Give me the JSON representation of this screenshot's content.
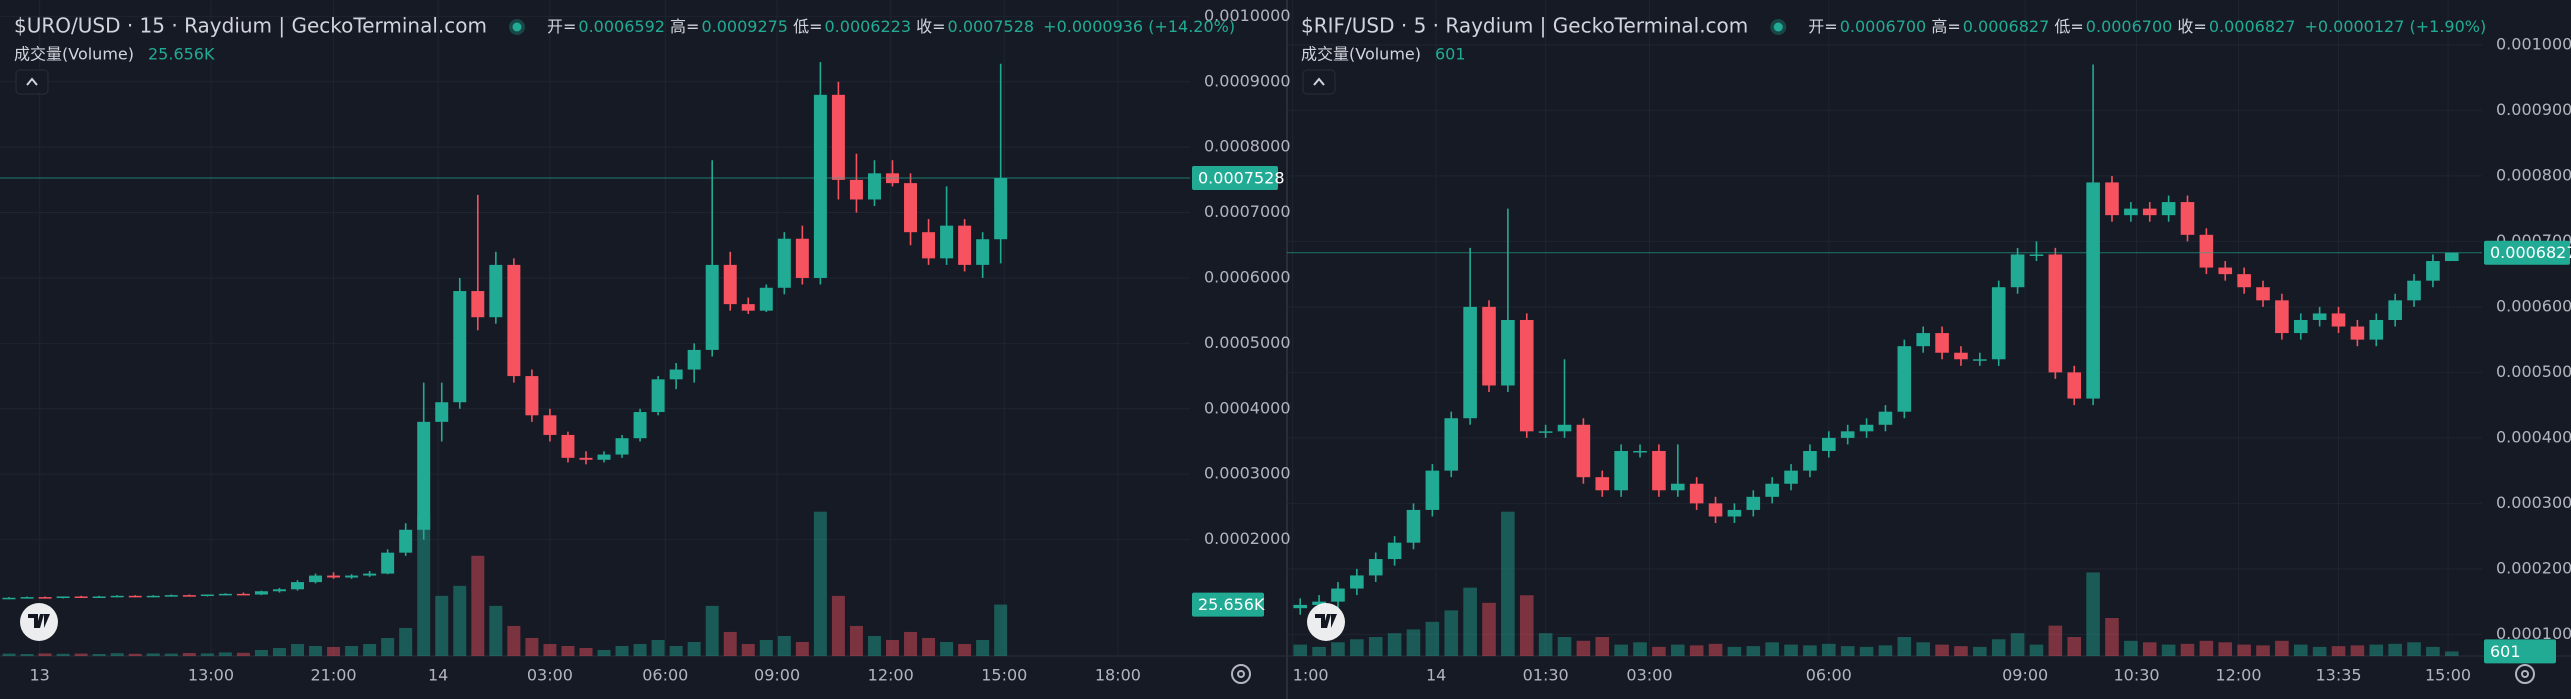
{
  "chart_data": [
    {
      "type": "candlestick",
      "title": "$URO/USD · 15 · Raydium | GeckoTerminal.com",
      "legend": {
        "open_label": "开=",
        "open": "0.0006592",
        "high_label": "高=",
        "high": "0.0009275",
        "low_label": "低=",
        "low": "0.0006223",
        "close_label": "收=",
        "close": "0.0007528",
        "change": "+0.0000936 (+14.20%)"
      },
      "volume_title": "成交量(Volume)",
      "volume_label": "25.656K",
      "up_color": "#22ab94",
      "down_color": "#f7525f",
      "grid": true,
      "open": [
        0.00011,
        0.000111,
        0.000112,
        0.000111,
        0.000113,
        0.000112,
        0.000113,
        0.000114,
        0.000113,
        0.000114,
        0.000115,
        0.000114,
        0.000116,
        0.000117,
        0.000116,
        0.000121,
        0.000124,
        0.000135,
        0.000145,
        0.000142,
        0.000145,
        0.000148,
        0.00018,
        0.000215,
        0.00038,
        0.00041,
        0.00058,
        0.00054,
        0.00062,
        0.00045,
        0.00039,
        0.00036,
        0.000325,
        0.000322,
        0.00033,
        0.000355,
        0.000395,
        0.000445,
        0.00046,
        0.00049,
        0.00062,
        0.00056,
        0.00055,
        0.000585,
        0.00066,
        0.0006,
        0.00088,
        0.00075,
        0.00072,
        0.00076,
        0.000745,
        0.00067,
        0.00063,
        0.00068,
        0.00062,
        0.0006592
      ],
      "high": [
        0.000112,
        0.000113,
        0.000113,
        0.000113,
        0.000114,
        0.000114,
        0.000115,
        0.000115,
        0.000115,
        0.000116,
        0.000116,
        0.000116,
        0.000118,
        0.000119,
        0.000122,
        0.000126,
        0.000138,
        0.000148,
        0.00015,
        0.000147,
        0.000152,
        0.000185,
        0.000225,
        0.00044,
        0.00044,
        0.0006,
        0.000727,
        0.00064,
        0.00063,
        0.00046,
        0.0004,
        0.000365,
        0.000335,
        0.000335,
        0.00036,
        0.0004,
        0.00045,
        0.00047,
        0.0005,
        0.00078,
        0.00064,
        0.00057,
        0.00059,
        0.00067,
        0.00068,
        0.00093,
        0.0009,
        0.00079,
        0.00078,
        0.00078,
        0.00076,
        0.00069,
        0.00074,
        0.00069,
        0.00067,
        0.0009275
      ],
      "low": [
        0.000109,
        0.00011,
        0.000111,
        0.00011,
        0.000112,
        0.000111,
        0.000112,
        0.000112,
        0.000112,
        0.000113,
        0.000113,
        0.000113,
        0.000115,
        0.000115,
        0.000115,
        0.000119,
        0.000122,
        0.000133,
        0.00014,
        0.00014,
        0.000143,
        0.000147,
        0.000175,
        0.0002,
        0.00035,
        0.0004,
        0.00052,
        0.00053,
        0.00044,
        0.00038,
        0.00035,
        0.000318,
        0.000315,
        0.000318,
        0.000325,
        0.00035,
        0.00039,
        0.00043,
        0.00044,
        0.00048,
        0.00055,
        0.000545,
        0.000548,
        0.000575,
        0.00059,
        0.00059,
        0.00072,
        0.0007,
        0.00071,
        0.00074,
        0.00065,
        0.00062,
        0.00062,
        0.00061,
        0.0006,
        0.0006223
      ],
      "close": [
        0.000111,
        0.000112,
        0.000111,
        0.000113,
        0.000112,
        0.000113,
        0.000114,
        0.000113,
        0.000114,
        0.000115,
        0.000114,
        0.000116,
        0.000117,
        0.000116,
        0.000121,
        0.000124,
        0.000135,
        0.000145,
        0.000142,
        0.000145,
        0.000148,
        0.00018,
        0.000215,
        0.00038,
        0.00041,
        0.00058,
        0.00054,
        0.00062,
        0.00045,
        0.00039,
        0.00036,
        0.000325,
        0.000322,
        0.00033,
        0.000355,
        0.000395,
        0.000445,
        0.00046,
        0.00049,
        0.00062,
        0.00056,
        0.00055,
        0.000585,
        0.00066,
        0.0006,
        0.00088,
        0.00075,
        0.00072,
        0.00076,
        0.000745,
        0.00067,
        0.00063,
        0.00068,
        0.00062,
        0.0006592,
        0.0007528
      ],
      "volume": [
        1200,
        1000,
        1300,
        1100,
        1200,
        1000,
        1400,
        1100,
        1300,
        1200,
        1500,
        1300,
        1800,
        1600,
        3000,
        4000,
        6000,
        5000,
        4500,
        5000,
        6000,
        9000,
        14000,
        70000,
        30000,
        35000,
        50000,
        25000,
        15000,
        9000,
        6000,
        5000,
        4000,
        3000,
        5000,
        6000,
        8000,
        5000,
        7000,
        25000,
        12000,
        6000,
        8000,
        10000,
        7000,
        72000,
        30000,
        15000,
        10000,
        8000,
        12000,
        9000,
        7000,
        6000,
        8000,
        25656
      ],
      "xlim": [
        -0.5,
        65.5
      ],
      "xticks": [
        {
          "value": 1.7,
          "label": "13"
        },
        {
          "value": 11.2,
          "label": "13:00"
        },
        {
          "value": 18,
          "label": "21:00"
        },
        {
          "value": 23.8,
          "label": "14"
        },
        {
          "value": 30,
          "label": "03:00"
        },
        {
          "value": 36.4,
          "label": "06:00"
        },
        {
          "value": 42.6,
          "label": "09:00"
        },
        {
          "value": 48.9,
          "label": "12:00"
        },
        {
          "value": 55.2,
          "label": "15:00"
        },
        {
          "value": 61.5,
          "label": "18:00"
        }
      ],
      "ylim": [
        2.2e-05,
        0.001025
      ],
      "yticks": [
        {
          "value": 0.0002,
          "label": "0.0002000"
        },
        {
          "value": 0.0003,
          "label": "0.0003000"
        },
        {
          "value": 0.0004,
          "label": "0.0004000"
        },
        {
          "value": 0.0005,
          "label": "0.0005000"
        },
        {
          "value": 0.0006,
          "label": "0.0006000"
        },
        {
          "value": 0.0007,
          "label": "0.0007000"
        },
        {
          "value": 0.0008,
          "label": "0.0008000"
        },
        {
          "value": 0.0009,
          "label": "0.0009000"
        },
        {
          "value": 0.001,
          "label": "0.0010000"
        }
      ]
    },
    {
      "type": "candlestick",
      "title": "$RIF/USD · 5 · Raydium | GeckoTerminal.com",
      "legend": {
        "open_label": "开=",
        "open": "0.0006700",
        "high_label": "高=",
        "high": "0.0006827",
        "low_label": "低=",
        "low": "0.0006700",
        "close_label": "收=",
        "close": "0.0006827",
        "change": "+0.0000127 (+1.90%)"
      },
      "volume_title": "成交量(Volume)",
      "volume_label": "601",
      "up_color": "#22ab94",
      "down_color": "#f7525f",
      "grid": true,
      "open": [
        0.00014,
        0.000145,
        0.00015,
        0.00017,
        0.00019,
        0.000215,
        0.00024,
        0.00029,
        0.00035,
        0.00043,
        0.0006,
        0.00048,
        0.00058,
        0.00041,
        0.00041,
        0.00042,
        0.00034,
        0.00032,
        0.00038,
        0.00038,
        0.00032,
        0.00033,
        0.0003,
        0.00028,
        0.00029,
        0.00031,
        0.00033,
        0.00035,
        0.00038,
        0.0004,
        0.00041,
        0.00042,
        0.00044,
        0.00054,
        0.00056,
        0.00053,
        0.00052,
        0.00052,
        0.00063,
        0.00068,
        0.00068,
        0.0005,
        0.00046,
        0.00079,
        0.00074,
        0.00075,
        0.00074,
        0.00076,
        0.00071,
        0.00066,
        0.00065,
        0.00063,
        0.00061,
        0.00056,
        0.00058,
        0.00059,
        0.00057,
        0.00055,
        0.00058,
        0.00061,
        0.00064,
        0.00067
      ],
      "high": [
        0.000155,
        0.00016,
        0.00018,
        0.0002,
        0.000225,
        0.00025,
        0.0003,
        0.00036,
        0.00044,
        0.00069,
        0.00061,
        0.00075,
        0.00059,
        0.00042,
        0.00052,
        0.00043,
        0.00035,
        0.00039,
        0.00039,
        0.00039,
        0.00039,
        0.00034,
        0.00031,
        0.0003,
        0.00032,
        0.00034,
        0.00036,
        0.00039,
        0.00041,
        0.00042,
        0.00043,
        0.00045,
        0.00055,
        0.00057,
        0.00057,
        0.00054,
        0.00053,
        0.00064,
        0.00069,
        0.0007,
        0.00069,
        0.00051,
        0.00097,
        0.0008,
        0.00076,
        0.00076,
        0.00077,
        0.00077,
        0.00072,
        0.00067,
        0.00066,
        0.00064,
        0.00062,
        0.00059,
        0.0006,
        0.0006,
        0.00058,
        0.00059,
        0.00062,
        0.00065,
        0.00068,
        0.0006827
      ],
      "low": [
        0.00013,
        0.000135,
        0.00014,
        0.00016,
        0.00018,
        0.000205,
        0.00023,
        0.00028,
        0.00034,
        0.00042,
        0.00047,
        0.00047,
        0.0004,
        0.0004,
        0.0004,
        0.00033,
        0.00031,
        0.00031,
        0.00037,
        0.00031,
        0.00031,
        0.00029,
        0.00027,
        0.00027,
        0.00028,
        0.0003,
        0.00032,
        0.00034,
        0.00037,
        0.00039,
        0.0004,
        0.00041,
        0.00043,
        0.00053,
        0.00052,
        0.00051,
        0.00051,
        0.00051,
        0.00062,
        0.00067,
        0.00049,
        0.00045,
        0.00045,
        0.00073,
        0.00073,
        0.00073,
        0.00073,
        0.0007,
        0.00065,
        0.00064,
        0.00062,
        0.0006,
        0.00055,
        0.00055,
        0.00057,
        0.00056,
        0.00054,
        0.00054,
        0.00057,
        0.0006,
        0.00063,
        0.00067
      ],
      "close": [
        0.000145,
        0.00015,
        0.00017,
        0.00019,
        0.000215,
        0.00024,
        0.00029,
        0.00035,
        0.00043,
        0.0006,
        0.00048,
        0.00058,
        0.00041,
        0.00041,
        0.00042,
        0.00034,
        0.00032,
        0.00038,
        0.00038,
        0.00032,
        0.00033,
        0.0003,
        0.00028,
        0.00029,
        0.00031,
        0.00033,
        0.00035,
        0.00038,
        0.0004,
        0.00041,
        0.00042,
        0.00044,
        0.00054,
        0.00056,
        0.00053,
        0.00052,
        0.00052,
        0.00063,
        0.00068,
        0.00068,
        0.0005,
        0.00046,
        0.00079,
        0.00074,
        0.00075,
        0.00074,
        0.00076,
        0.00071,
        0.00066,
        0.00065,
        0.00063,
        0.00061,
        0.00056,
        0.00058,
        0.00059,
        0.00057,
        0.00055,
        0.00058,
        0.00061,
        0.00064,
        0.00067,
        0.0006827
      ],
      "volume": [
        1500,
        1200,
        1800,
        2200,
        2500,
        3000,
        3500,
        4500,
        6000,
        9000,
        7000,
        19000,
        8000,
        3000,
        2500,
        2000,
        2500,
        1500,
        1800,
        1200,
        1500,
        1400,
        1600,
        1200,
        1300,
        1800,
        1500,
        1400,
        1600,
        1300,
        1200,
        1400,
        2500,
        1800,
        1500,
        1300,
        1200,
        2200,
        3000,
        1500,
        4000,
        2500,
        11000,
        5000,
        2000,
        1800,
        1500,
        1600,
        2000,
        1800,
        1500,
        1400,
        2000,
        1500,
        1200,
        1300,
        1400,
        1500,
        1600,
        1800,
        1200,
        601
      ],
      "xlim": [
        -0.7,
        62.6
      ],
      "xticks": [
        {
          "value": -0.4,
          "label": "1:00"
        },
        {
          "value": 7.2,
          "label": "14"
        },
        {
          "value": 13,
          "label": "01:30"
        },
        {
          "value": 18.5,
          "label": "03:00"
        },
        {
          "value": 28,
          "label": "06:00"
        },
        {
          "value": 38.4,
          "label": "09:00"
        },
        {
          "value": 44.3,
          "label": "10:30"
        },
        {
          "value": 49.7,
          "label": "12:00"
        },
        {
          "value": 55,
          "label": "13:35"
        },
        {
          "value": 60.8,
          "label": "15:00"
        }
      ],
      "ylim": [
        6.7e-05,
        0.0010685
      ],
      "yticks": [
        {
          "value": 0.0001,
          "label": "0.0001000"
        },
        {
          "value": 0.0002,
          "label": "0.0002000"
        },
        {
          "value": 0.0003,
          "label": "0.0003000"
        },
        {
          "value": 0.0004,
          "label": "0.0004000"
        },
        {
          "value": 0.0005,
          "label": "0.0005000"
        },
        {
          "value": 0.0006,
          "label": "0.0006000"
        },
        {
          "value": 0.0007,
          "label": "0.0007000"
        },
        {
          "value": 0.0008,
          "label": "0.0008000"
        },
        {
          "value": 0.0009,
          "label": "0.0009000"
        },
        {
          "value": 0.001,
          "label": "0.0010000"
        }
      ]
    }
  ]
}
